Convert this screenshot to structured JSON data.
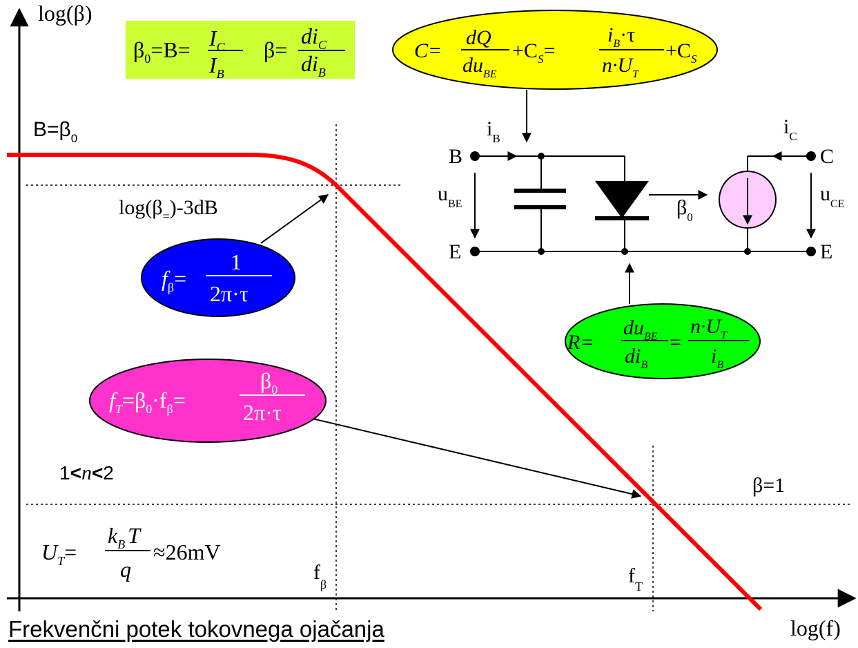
{
  "title": "Frekvenčni potek tokovnega ojačanja",
  "axes": {
    "y_label": "log(β)",
    "x_label": "log(f)"
  },
  "labels": {
    "dc_gain": {
      "main": "B=β",
      "sub": "0"
    },
    "minus3db": {
      "pre": "log(β",
      "sub": "=",
      "post": ")-3dB"
    },
    "beta_one": "β=1",
    "n_range": {
      "a": "1",
      "lt1": "<",
      "n": "n",
      "lt2": "<",
      "b": "2"
    },
    "f_beta": {
      "main": "f",
      "sub": "β"
    },
    "f_T": {
      "main": "f",
      "sub": "T"
    }
  },
  "formulas": {
    "green_box": {
      "beta0": "β",
      "beta0_sub": "0",
      "eq1": "=B=",
      "ic": "I",
      "ic_sub": "C",
      "ib": "I",
      "ib_sub": "B",
      "beta": "β=",
      "dic": "di",
      "dic_sub": "C",
      "dib": "di",
      "dib_sub": "B"
    },
    "capacitance": {
      "lhs": "C=",
      "num1": "dQ",
      "den1": "du",
      "den1_sub": "BE",
      "plus_cs": "+C",
      "cs_sub": "S",
      "eq": "=",
      "num2": "i",
      "num2_sub": "B",
      "num2_tail": "·τ",
      "den2": "n·U",
      "den2_sub": "T",
      "plus_cs2": "+C",
      "cs2_sub": "S"
    },
    "f_beta": {
      "lhs": "f",
      "lhs_sub": "β",
      "eq": "=",
      "num": "1",
      "den": "2π·τ"
    },
    "f_T": {
      "lhs": "f",
      "lhs_sub": "T",
      "mid": "=β",
      "mid_sub": "0",
      "dot": "·f",
      "dot_sub": "β",
      "eq": "=",
      "num": "β",
      "num_sub": "0",
      "den": "2π·τ"
    },
    "resistance": {
      "lhs": "R=",
      "num1": "du",
      "num1_sub": "BE",
      "den1": "di",
      "den1_sub": "B",
      "eq": "=",
      "num2": "n·U",
      "num2_sub": "T",
      "den2": "i",
      "den2_sub": "B"
    },
    "ut": {
      "lhs": "U",
      "lhs_sub": "T",
      "eq": "=",
      "num": "k",
      "num_sub": "B",
      "num_tail": "T",
      "den": "q",
      "tail": "≈26mV"
    }
  },
  "circuit": {
    "node_b": "B",
    "node_c": "C",
    "node_e_left": "E",
    "node_e_right": "E",
    "ib": {
      "main": "i",
      "sub": "B"
    },
    "ic": {
      "main": "i",
      "sub": "C"
    },
    "ube": {
      "main": "u",
      "sub": "BE"
    },
    "uce": {
      "main": "u",
      "sub": "CE"
    },
    "beta0": {
      "main": "β",
      "sub": "0"
    }
  },
  "colors": {
    "curve": "#ff0000",
    "green_box": "#ccff33",
    "yellow_ellipse": "#ffff00",
    "blue_ellipse": "#0000ff",
    "magenta_ellipse": "#ff33cc",
    "green_ellipse": "#00ff00",
    "current_source": "#ffccff"
  }
}
